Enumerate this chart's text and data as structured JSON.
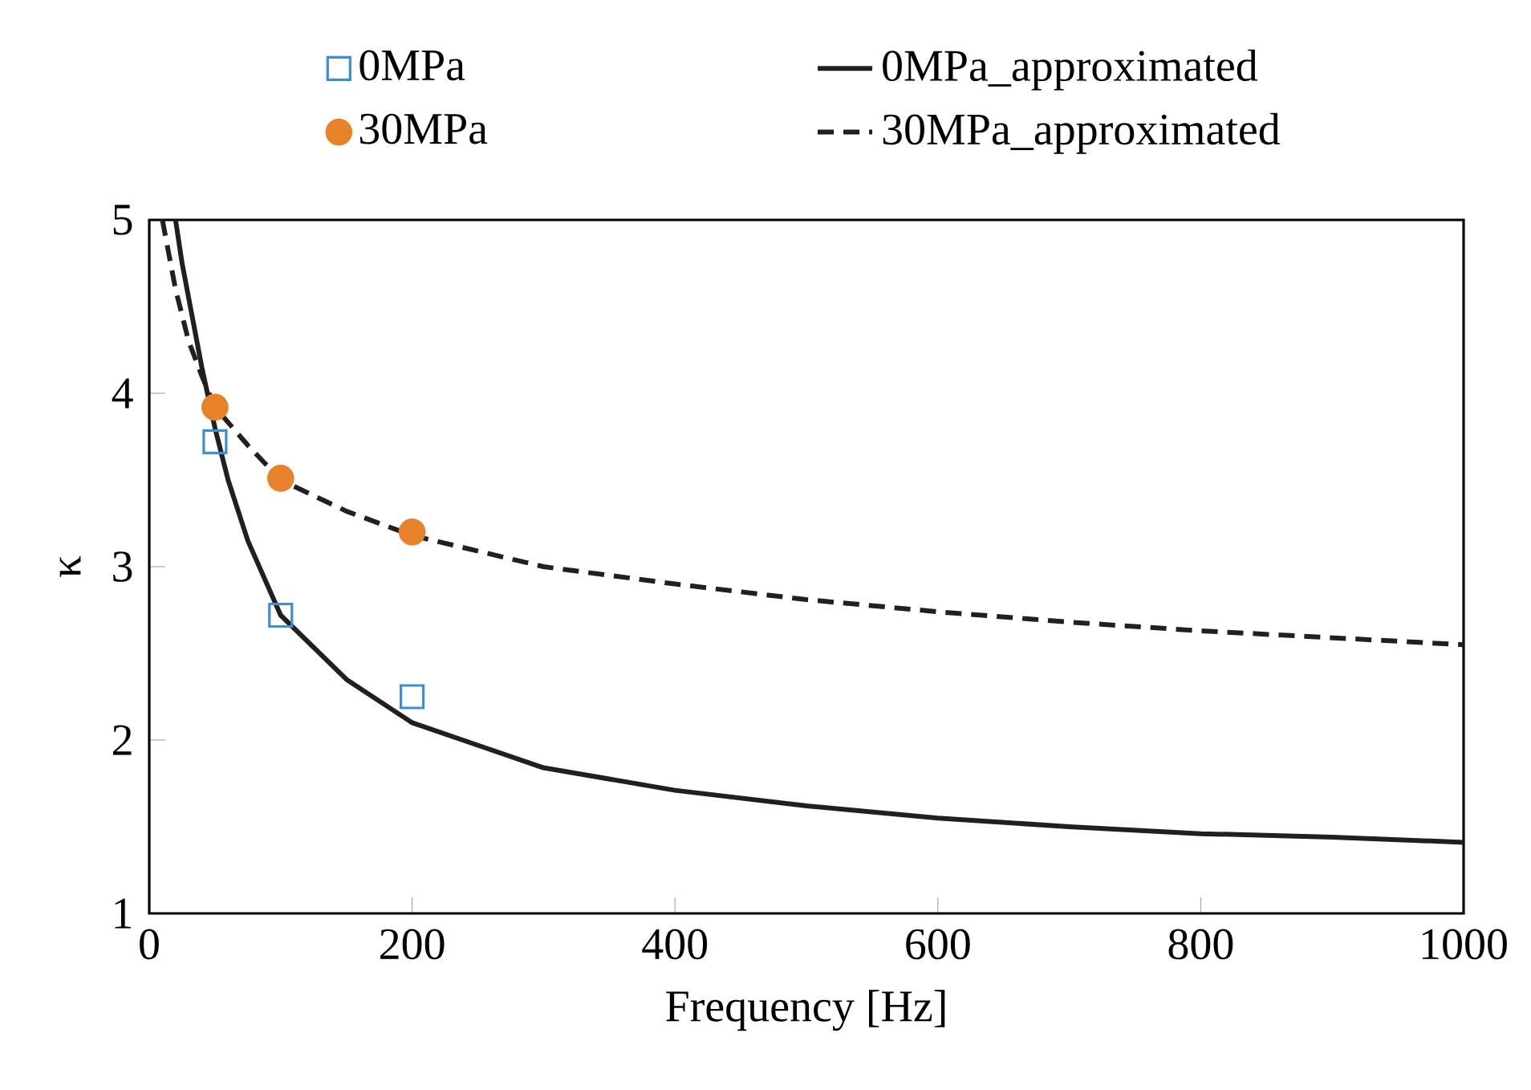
{
  "chart_data": {
    "type": "line",
    "xlabel": "Frequency [Hz]",
    "ylabel": "κ",
    "xlim": [
      0,
      1000
    ],
    "ylim": [
      1,
      5
    ],
    "xticks": [
      0,
      200,
      400,
      600,
      800,
      1000
    ],
    "yticks": [
      1,
      2,
      3,
      4,
      5
    ],
    "grid": false,
    "legend": "top",
    "series": [
      {
        "name": "0MPa",
        "type": "scatter",
        "marker": "square",
        "color": "#3d8fd1",
        "x": [
          50,
          100,
          200
        ],
        "values": [
          3.72,
          2.72,
          2.25
        ]
      },
      {
        "name": "0MPa_approximated",
        "marker": "none",
        "line_style": "solid",
        "color": "#231f20",
        "x": [
          20,
          25,
          30,
          40,
          50,
          60,
          75,
          100,
          150,
          200,
          250,
          300,
          400,
          500,
          600,
          700,
          800,
          900,
          1000
        ],
        "values": [
          5,
          4.75,
          4.55,
          4.15,
          3.8,
          3.5,
          3.15,
          2.72,
          2.35,
          2.1,
          1.97,
          1.84,
          1.71,
          1.62,
          1.55,
          1.5,
          1.46,
          1.44,
          1.41
        ]
      },
      {
        "name": "30MPa",
        "type": "scatter",
        "marker": "circle",
        "color": "#e8822a",
        "x": [
          50,
          100,
          200
        ],
        "values": [
          3.92,
          3.51,
          3.2
        ]
      },
      {
        "name": "30MPa_approximated",
        "marker": "none",
        "line_style": "dashed",
        "color": "#231f20",
        "x": [
          10,
          15,
          20,
          30,
          40,
          50,
          75,
          100,
          150,
          200,
          300,
          400,
          500,
          600,
          700,
          800,
          900,
          1000
        ],
        "values": [
          5,
          4.8,
          4.6,
          4.3,
          4.1,
          3.92,
          3.7,
          3.5,
          3.32,
          3.18,
          3.0,
          2.9,
          2.81,
          2.74,
          2.68,
          2.63,
          2.59,
          2.55
        ]
      }
    ]
  }
}
